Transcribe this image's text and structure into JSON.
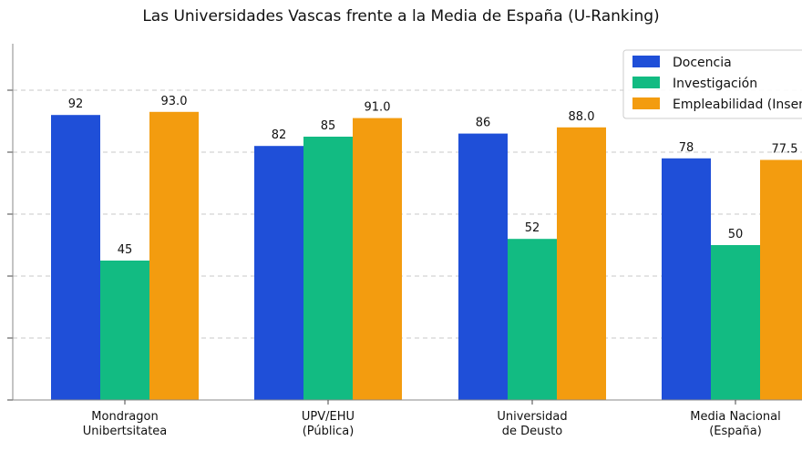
{
  "chart_data": {
    "type": "bar",
    "title": "Las Universidades Vascas frente a la Media de España (U-Ranking)",
    "xlabel": "",
    "ylabel": "",
    "categories": [
      [
        "Mondragon",
        "Unibertsitatea"
      ],
      [
        "UPV/EHU",
        "(Pública)"
      ],
      [
        "Universidad",
        "de Deusto"
      ],
      [
        "Media Nacional",
        "(España)"
      ]
    ],
    "series": [
      {
        "name": "Docencia",
        "color": "#1f4fd8",
        "values": [
          92,
          82,
          86,
          78
        ],
        "labels": [
          "92",
          "82",
          "86",
          "78"
        ]
      },
      {
        "name": "Investigación",
        "color": "#12bb82",
        "values": [
          45,
          85,
          52,
          50
        ],
        "labels": [
          "45",
          "85",
          "52",
          "50"
        ]
      },
      {
        "name": "Empleabilidad (Inserc",
        "color": "#f39c0f",
        "values": [
          93.0,
          91.0,
          88.0,
          77.5
        ],
        "labels": [
          "93.0",
          "91.0",
          "88.0",
          "77.5"
        ]
      }
    ],
    "ylim": [
      0,
      110
    ],
    "grid": true,
    "legend_position": "top-right"
  }
}
